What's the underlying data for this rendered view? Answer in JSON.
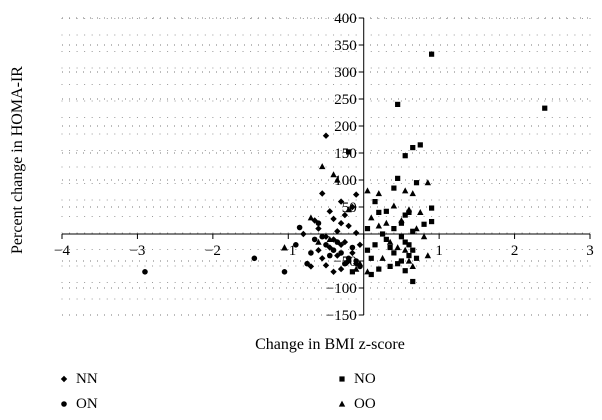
{
  "chart_data": {
    "type": "scatter",
    "title": "",
    "xlabel": "Change in BMI z-score",
    "ylabel": "Percent change in HOMA-IR",
    "xlim": [
      -4,
      3
    ],
    "ylim": [
      -150,
      400
    ],
    "x_ticks": [
      -4,
      -3,
      -2,
      -1,
      0,
      1,
      2,
      3
    ],
    "x_tick_labels": [
      "−4",
      "−3",
      "−2",
      "−1",
      "",
      "1",
      "2",
      "3"
    ],
    "y_ticks": [
      -150,
      -100,
      -50,
      0,
      50,
      100,
      150,
      200,
      250,
      300,
      350,
      400
    ],
    "y_tick_labels": [
      "−150",
      "−100",
      "−50",
      "",
      "50",
      "100",
      "150",
      "200",
      "250",
      "300",
      "350",
      "400"
    ],
    "grid": "dotted",
    "legend_position": "bottom",
    "series": [
      {
        "name": "NN",
        "marker": "diamond",
        "points": [
          [
            -0.5,
            182
          ],
          [
            -0.55,
            75
          ],
          [
            -0.1,
            73
          ],
          [
            -0.3,
            60
          ],
          [
            -0.45,
            42
          ],
          [
            -0.4,
            28
          ],
          [
            -0.3,
            20
          ],
          [
            -0.2,
            15
          ],
          [
            -0.6,
            10
          ],
          [
            -0.35,
            5
          ],
          [
            -0.1,
            2
          ],
          [
            -0.5,
            -5
          ],
          [
            -0.4,
            -10
          ],
          [
            -0.25,
            -15
          ],
          [
            -0.3,
            -20
          ],
          [
            -0.45,
            -25
          ],
          [
            -0.6,
            -30
          ],
          [
            -0.15,
            -35
          ],
          [
            -0.35,
            -40
          ],
          [
            -0.2,
            -50
          ],
          [
            -0.1,
            -55
          ],
          [
            -0.5,
            -58
          ],
          [
            -0.7,
            -60
          ],
          [
            -0.3,
            -65
          ],
          [
            -0.05,
            -20
          ],
          [
            -0.55,
            -45
          ],
          [
            -0.8,
            0
          ],
          [
            -0.25,
            35
          ],
          [
            -0.15,
            50
          ],
          [
            -0.65,
            25
          ],
          [
            -0.4,
            -70
          ]
        ]
      },
      {
        "name": "ON",
        "marker": "circle",
        "points": [
          [
            -2.9,
            -70
          ],
          [
            -1.45,
            -45
          ],
          [
            -1.05,
            -70
          ],
          [
            -0.75,
            -55
          ],
          [
            -0.85,
            12
          ],
          [
            -0.65,
            -10
          ],
          [
            -0.5,
            -20
          ],
          [
            -0.4,
            -30
          ],
          [
            -0.3,
            -35
          ],
          [
            -0.2,
            -45
          ],
          [
            -0.1,
            -50
          ],
          [
            -0.05,
            -60
          ],
          [
            -0.55,
            -5
          ],
          [
            -0.35,
            -15
          ],
          [
            -0.15,
            -25
          ],
          [
            -0.45,
            -40
          ],
          [
            -0.25,
            -55
          ],
          [
            -0.6,
            20
          ],
          [
            -0.7,
            -35
          ],
          [
            -0.9,
            -20
          ]
        ]
      },
      {
        "name": "NO",
        "marker": "square",
        "points": [
          [
            0.9,
            333
          ],
          [
            2.4,
            233
          ],
          [
            0.45,
            240
          ],
          [
            0.75,
            165
          ],
          [
            0.65,
            160
          ],
          [
            0.55,
            145
          ],
          [
            -0.2,
            152
          ],
          [
            0.45,
            103
          ],
          [
            0.7,
            95
          ],
          [
            0.4,
            85
          ],
          [
            0.9,
            48
          ],
          [
            0.6,
            40
          ],
          [
            0.55,
            35
          ],
          [
            0.5,
            20
          ],
          [
            0.8,
            18
          ],
          [
            0.9,
            23
          ],
          [
            0.3,
            42
          ],
          [
            0.2,
            40
          ],
          [
            0.65,
            5
          ],
          [
            0.5,
            -5
          ],
          [
            0.55,
            -15
          ],
          [
            0.6,
            -20
          ],
          [
            0.65,
            -30
          ],
          [
            0.6,
            -40
          ],
          [
            0.7,
            -45
          ],
          [
            0.5,
            -50
          ],
          [
            0.45,
            -55
          ],
          [
            0.35,
            -60
          ],
          [
            0.1,
            -75
          ],
          [
            0.65,
            -88
          ],
          [
            0.2,
            -65
          ],
          [
            0.3,
            -10
          ],
          [
            0.15,
            -20
          ],
          [
            0.05,
            -30
          ],
          [
            0.1,
            -45
          ],
          [
            0.25,
            0
          ],
          [
            0.4,
            10
          ],
          [
            0.35,
            -25
          ],
          [
            0.05,
            10
          ],
          [
            -0.15,
            -70
          ],
          [
            0.55,
            -68
          ],
          [
            0.4,
            -35
          ],
          [
            0.15,
            60
          ]
        ]
      },
      {
        "name": "OO",
        "marker": "triangle",
        "points": [
          [
            -0.55,
            125
          ],
          [
            -0.4,
            110
          ],
          [
            -0.35,
            100
          ],
          [
            0.05,
            80
          ],
          [
            0.2,
            75
          ],
          [
            0.65,
            75
          ],
          [
            0.85,
            95
          ],
          [
            0.55,
            80
          ],
          [
            -0.2,
            45
          ],
          [
            0.4,
            52
          ],
          [
            0.6,
            45
          ],
          [
            0.75,
            40
          ],
          [
            0.8,
            -5
          ],
          [
            0.85,
            -40
          ],
          [
            0.6,
            -50
          ],
          [
            0.65,
            -60
          ],
          [
            0.55,
            -30
          ],
          [
            0.45,
            -25
          ],
          [
            0.35,
            -15
          ],
          [
            0.2,
            15
          ],
          [
            0.1,
            30
          ],
          [
            -0.05,
            -55
          ],
          [
            -0.1,
            -65
          ],
          [
            0.05,
            -70
          ],
          [
            0.25,
            -45
          ],
          [
            -0.45,
            -10
          ],
          [
            -0.6,
            -15
          ],
          [
            -1.05,
            -25
          ],
          [
            -0.7,
            30
          ],
          [
            0.3,
            20
          ],
          [
            0.7,
            10
          ],
          [
            0.5,
            25
          ]
        ]
      }
    ]
  }
}
